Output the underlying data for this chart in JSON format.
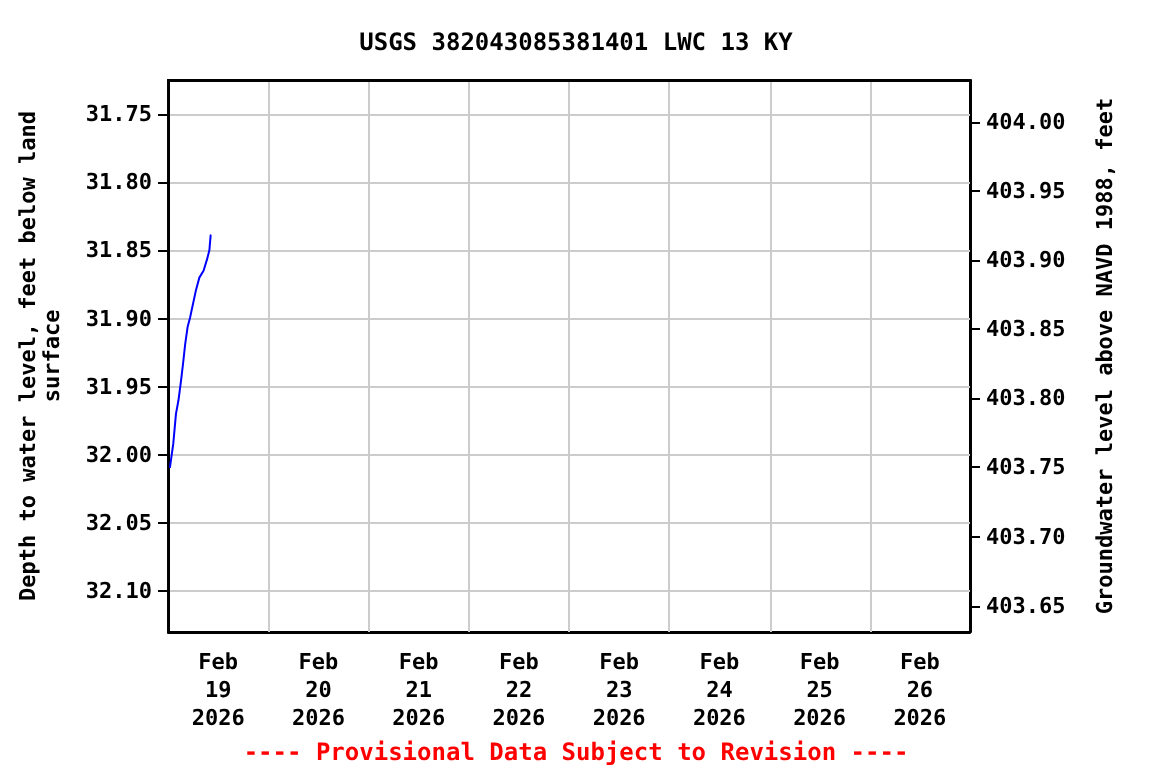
{
  "chart_data": {
    "type": "line",
    "title": "USGS 382043085381401 LWC 13 KY",
    "ylabel": "Depth to water level, feet below land\nsurface",
    "y2label": "Groundwater level above NAVD 1988, feet",
    "annotations": [
      "---- Provisional Data Subject to Revision ----"
    ],
    "x": [
      "2026-02-19T00:28",
      "2026-02-19T01:15",
      "2026-02-19T01:54",
      "2026-02-19T02:30",
      "2026-02-19T03:06",
      "2026-02-19T03:36",
      "2026-02-19T04:06",
      "2026-02-19T04:42",
      "2026-02-19T05:18",
      "2026-02-19T06:00",
      "2026-02-19T06:42",
      "2026-02-19T07:30",
      "2026-02-19T08:30",
      "2026-02-19T09:18",
      "2026-02-19T09:54",
      "2026-02-19T10:12"
    ],
    "series": [
      {
        "color": "#0000ff",
        "values": [
          32.009,
          31.992,
          31.97,
          31.96,
          31.946,
          31.933,
          31.919,
          31.906,
          31.899,
          31.889,
          31.879,
          31.87,
          31.865,
          31.857,
          31.85,
          31.839
        ]
      }
    ],
    "xlim": [
      "2026-02-19T00:00",
      "2026-02-27T00:00"
    ],
    "xticks": [
      {
        "value": "2026-02-19T00:00",
        "label": null
      },
      {
        "value": "2026-02-19T12:00",
        "label": "Feb\n19\n2026"
      },
      {
        "value": "2026-02-20T00:00",
        "label": null
      },
      {
        "value": "2026-02-20T12:00",
        "label": "Feb\n20\n2026"
      },
      {
        "value": "2026-02-21T00:00",
        "label": null
      },
      {
        "value": "2026-02-21T12:00",
        "label": "Feb\n21\n2026"
      },
      {
        "value": "2026-02-22T00:00",
        "label": null
      },
      {
        "value": "2026-02-22T12:00",
        "label": "Feb\n22\n2026"
      },
      {
        "value": "2026-02-23T00:00",
        "label": null
      },
      {
        "value": "2026-02-23T12:00",
        "label": "Feb\n23\n2026"
      },
      {
        "value": "2026-02-24T00:00",
        "label": null
      },
      {
        "value": "2026-02-24T12:00",
        "label": "Feb\n24\n2026"
      },
      {
        "value": "2026-02-25T00:00",
        "label": null
      },
      {
        "value": "2026-02-25T12:00",
        "label": "Feb\n25\n2026"
      },
      {
        "value": "2026-02-26T00:00",
        "label": null
      },
      {
        "value": "2026-02-26T12:00",
        "label": "Feb\n26\n2026"
      },
      {
        "value": "2026-02-27T00:00",
        "label": null
      }
    ],
    "ylim": [
      32.13,
      31.725
    ],
    "yticks": [
      {
        "value": 31.75,
        "label": "31.75"
      },
      {
        "value": 31.8,
        "label": "31.80"
      },
      {
        "value": 31.85,
        "label": "31.85"
      },
      {
        "value": 31.9,
        "label": "31.90"
      },
      {
        "value": 31.95,
        "label": "31.95"
      },
      {
        "value": 32.0,
        "label": "32.00"
      },
      {
        "value": 32.05,
        "label": "32.05"
      },
      {
        "value": 32.1,
        "label": "32.10"
      }
    ],
    "y2lim": [
      403.631,
      404.03
    ],
    "y2ticks": [
      {
        "value": 403.65,
        "label": "403.65"
      },
      {
        "value": 403.7,
        "label": "403.70"
      },
      {
        "value": 403.75,
        "label": "403.75"
      },
      {
        "value": 403.8,
        "label": "403.80"
      },
      {
        "value": 403.85,
        "label": "403.85"
      },
      {
        "value": 403.9,
        "label": "403.90"
      },
      {
        "value": 403.95,
        "label": "403.95"
      },
      {
        "value": 404.0,
        "label": "404.00"
      }
    ],
    "grid": true,
    "marker": "none",
    "line_style": "solid"
  }
}
